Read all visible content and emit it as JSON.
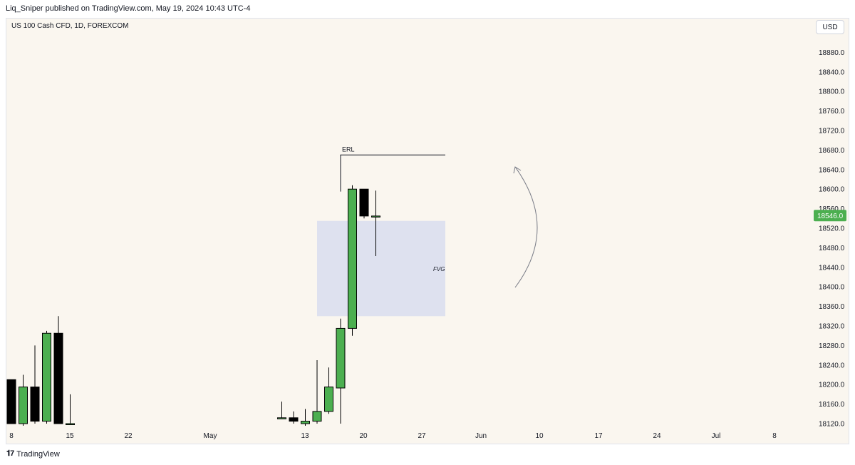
{
  "header": {
    "published_line": "Liq_Sniper published on TradingView.com, May 19, 2024 10:43 UTC-4"
  },
  "symbol_line": "US 100 Cash CFD, 1D, FOREXCOM",
  "currency_button": "USD",
  "footer": {
    "brand": "TradingView"
  },
  "chart_data": {
    "type": "candlestick",
    "title": "",
    "x_tick_labels": [
      "8",
      "15",
      "22",
      "May",
      "13",
      "20",
      "27",
      "Jun",
      "10",
      "17",
      "24",
      "Jul",
      "8"
    ],
    "y_tick_labels": [
      "18880.0",
      "18840.0",
      "18800.0",
      "18760.0",
      "18720.0",
      "18680.0",
      "18640.0",
      "18600.0",
      "18560.0",
      "18520.0",
      "18480.0",
      "18440.0",
      "18400.0",
      "18360.0",
      "18320.0",
      "18280.0",
      "18240.0",
      "18200.0",
      "18160.0",
      "18120.0"
    ],
    "ylim": [
      18110,
      18920
    ],
    "last_price": "18546.0",
    "colors": {
      "up": "#4caf50",
      "down": "#000000",
      "last_price_badge": "#4caf50",
      "fvg_box": "#dee1ef"
    },
    "candles": [
      {
        "date": "2024-04-08",
        "open": 18210,
        "high": 18210,
        "low": 18120,
        "close": 18120
      },
      {
        "date": "2024-04-09",
        "open": 18120,
        "high": 18220,
        "low": 18115,
        "close": 18195
      },
      {
        "date": "2024-04-10",
        "open": 18195,
        "high": 18280,
        "low": 18120,
        "close": 18125
      },
      {
        "date": "2024-04-11",
        "open": 18125,
        "high": 18310,
        "low": 18120,
        "close": 18305
      },
      {
        "date": "2024-04-12",
        "open": 18305,
        "high": 18340,
        "low": 18120,
        "close": 18120
      },
      {
        "date": "2024-04-15",
        "open": 18120,
        "high": 18180,
        "low": 18120,
        "close": 18120
      },
      {
        "date": "2024-05-09",
        "open": 18130,
        "high": 18165,
        "low": 18130,
        "close": 18132
      },
      {
        "date": "2024-05-10",
        "open": 18132,
        "high": 18145,
        "low": 18120,
        "close": 18125
      },
      {
        "date": "2024-05-13",
        "open": 18120,
        "high": 18150,
        "low": 18115,
        "close": 18125
      },
      {
        "date": "2024-05-14",
        "open": 18125,
        "high": 18250,
        "low": 18120,
        "close": 18145
      },
      {
        "date": "2024-05-15",
        "open": 18145,
        "high": 18235,
        "low": 18140,
        "close": 18195
      },
      {
        "date": "2024-05-16",
        "open": 18193,
        "high": 18335,
        "low": 18120,
        "close": 18315
      },
      {
        "date": "2024-05-17",
        "open": 18315,
        "high": 18608,
        "low": 18300,
        "close": 18600
      },
      {
        "date": "2024-05-20",
        "open": 18600,
        "high": 18600,
        "low": 18540,
        "close": 18545
      },
      {
        "date": "2024-05-21",
        "open": 18545,
        "high": 18597,
        "low": 18463,
        "close": 18545
      }
    ],
    "annotations": [
      {
        "type": "line",
        "label": "ERL",
        "price": 18670
      },
      {
        "type": "box",
        "label": "FVG",
        "price_top": 18535,
        "price_bottom": 18340
      },
      {
        "type": "arc-arrow",
        "direction": "up"
      }
    ]
  }
}
